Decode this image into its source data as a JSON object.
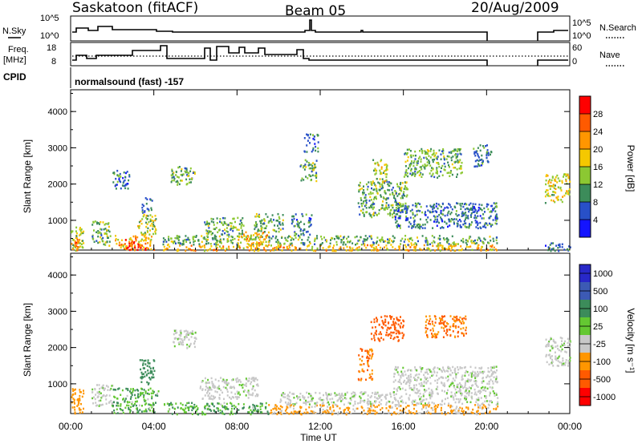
{
  "header": {
    "station": "Saskatoon (fitACF)",
    "beam": "Beam 05",
    "date": "20/Aug/2009"
  },
  "top_panels": {
    "nsky_label": "N.Sky",
    "nsky_ticks": [
      "10^5",
      "10^0"
    ],
    "nsearch_label": "N.Search",
    "nsearch_ticks": [
      "10^5",
      "10^0"
    ],
    "freq_label_1": "Freq.",
    "freq_label_2": "[MHz]",
    "freq_ticks": [
      "18",
      "8"
    ],
    "nave_label": "Nave",
    "nave_ticks": [
      "60",
      "0"
    ],
    "cpid_label": "CPID",
    "cpid_text": "normalsound (fast) -157"
  },
  "axes": {
    "y_label": "Slant Range [km]",
    "y_ticks": [
      "4000",
      "3000",
      "2000",
      "1000"
    ],
    "x_ticks": [
      "00:00",
      "04:00",
      "08:00",
      "12:00",
      "16:00",
      "20:00",
      "00:00"
    ],
    "x_label": "Time UT"
  },
  "power_scale": {
    "label": "Power [dB]",
    "ticks": [
      "28",
      "24",
      "20",
      "16",
      "12",
      "8",
      "4"
    ],
    "colors": [
      "#ff0000",
      "#ff5a00",
      "#ff9600",
      "#f5c800",
      "#8cc832",
      "#3c8c5a",
      "#2850c8",
      "#1414ff"
    ]
  },
  "velocity_scale": {
    "label": "Velocity [m s⁻¹]",
    "ticks": [
      "1000",
      "500",
      "100",
      "25",
      "-25",
      "-100",
      "-500",
      "-1000"
    ],
    "colors": [
      "#2828c8",
      "#3c5ab4",
      "#3c8c5a",
      "#64c832",
      "#c8c8c8",
      "#ff9600",
      "#ff5a00",
      "#ff0000"
    ]
  },
  "chart_data": [
    {
      "type": "heatmap",
      "title": "Saskatoon (fitACF) Beam 05 20/Aug/2009",
      "xlabel": "Time UT",
      "ylabel": "Slant Range [km]",
      "colorbar_label": "Power [dB]",
      "xlim_hours": [
        0,
        24
      ],
      "ylim_km": [
        180,
        4600
      ],
      "scale_db": [
        0,
        32
      ],
      "data_gaps_hours": [
        [
          20.5,
          22.8
        ]
      ],
      "regions": [
        {
          "t": [
            0.0,
            0.6
          ],
          "r": [
            180,
            900
          ],
          "v": 16
        },
        {
          "t": [
            0.0,
            0.4
          ],
          "r": [
            200,
            500
          ],
          "v": 24
        },
        {
          "t": [
            1.0,
            1.9
          ],
          "r": [
            300,
            1000
          ],
          "v": 12
        },
        {
          "t": [
            2.1,
            4.0
          ],
          "r": [
            200,
            600
          ],
          "v": 20
        },
        {
          "t": [
            2.6,
            3.6
          ],
          "r": [
            200,
            500
          ],
          "v": 28
        },
        {
          "t": [
            3.2,
            4.1
          ],
          "r": [
            600,
            1200
          ],
          "v": 16
        },
        {
          "t": [
            3.4,
            3.9
          ],
          "r": [
            1200,
            1700
          ],
          "v": 8
        },
        {
          "t": [
            2.0,
            2.8
          ],
          "r": [
            1900,
            2400
          ],
          "v": 8
        },
        {
          "t": [
            4.4,
            20.5
          ],
          "r": [
            180,
            350
          ],
          "v": 20
        },
        {
          "t": [
            4.4,
            20.5
          ],
          "r": [
            350,
            600
          ],
          "v": 12
        },
        {
          "t": [
            4.8,
            6.0
          ],
          "r": [
            2000,
            2500
          ],
          "v": 12
        },
        {
          "t": [
            6.4,
            8.3
          ],
          "r": [
            600,
            1100
          ],
          "v": 12
        },
        {
          "t": [
            8.0,
            9.5
          ],
          "r": [
            300,
            700
          ],
          "v": 20
        },
        {
          "t": [
            8.8,
            10.2
          ],
          "r": [
            700,
            1200
          ],
          "v": 12
        },
        {
          "t": [
            10.6,
            11.6
          ],
          "r": [
            600,
            1200
          ],
          "v": 8
        },
        {
          "t": [
            11.0,
            11.8
          ],
          "r": [
            2100,
            2700
          ],
          "v": 12
        },
        {
          "t": [
            11.2,
            11.9
          ],
          "r": [
            2900,
            3400
          ],
          "v": 8
        },
        {
          "t": [
            13.8,
            16.2
          ],
          "r": [
            1100,
            2100
          ],
          "v": 12
        },
        {
          "t": [
            14.5,
            15.2
          ],
          "r": [
            2000,
            2700
          ],
          "v": 16
        },
        {
          "t": [
            15.5,
            20.5
          ],
          "r": [
            800,
            1500
          ],
          "v": 8
        },
        {
          "t": [
            16.0,
            18.8
          ],
          "r": [
            2200,
            3000
          ],
          "v": 12
        },
        {
          "t": [
            19.3,
            20.2
          ],
          "r": [
            2500,
            3100
          ],
          "v": 8
        },
        {
          "t": [
            22.8,
            24.0
          ],
          "r": [
            1500,
            2300
          ],
          "v": 16
        },
        {
          "t": [
            22.8,
            24.0
          ],
          "r": [
            180,
            400
          ],
          "v": 8
        }
      ]
    },
    {
      "type": "heatmap",
      "xlabel": "Time UT",
      "ylabel": "Slant Range [km]",
      "colorbar_label": "Velocity [m s⁻¹]",
      "xlim_hours": [
        0,
        24
      ],
      "ylim_km": [
        180,
        4600
      ],
      "scale_ms": [
        -1000,
        1000
      ],
      "data_gaps_hours": [
        [
          20.5,
          22.8
        ]
      ],
      "regions": [
        {
          "t": [
            0.0,
            0.6
          ],
          "r": [
            180,
            900
          ],
          "v": -100
        },
        {
          "t": [
            1.0,
            2.0
          ],
          "r": [
            400,
            1000
          ],
          "v": 0
        },
        {
          "t": [
            2.0,
            4.2
          ],
          "r": [
            200,
            900
          ],
          "v": 60
        },
        {
          "t": [
            3.3,
            4.0
          ],
          "r": [
            1000,
            1700
          ],
          "v": 100
        },
        {
          "t": [
            4.4,
            9.5
          ],
          "r": [
            180,
            500
          ],
          "v": 60
        },
        {
          "t": [
            9.5,
            20.5
          ],
          "r": [
            180,
            450
          ],
          "v": -80
        },
        {
          "t": [
            10.0,
            20.5
          ],
          "r": [
            450,
            800
          ],
          "v": 0
        },
        {
          "t": [
            4.8,
            6.0
          ],
          "r": [
            2000,
            2500
          ],
          "v": 0
        },
        {
          "t": [
            6.2,
            9.0
          ],
          "r": [
            600,
            1200
          ],
          "v": 0
        },
        {
          "t": [
            13.8,
            14.5
          ],
          "r": [
            1100,
            2000
          ],
          "v": -300
        },
        {
          "t": [
            14.4,
            16.0
          ],
          "r": [
            2200,
            2900
          ],
          "v": -400
        },
        {
          "t": [
            15.5,
            20.5
          ],
          "r": [
            800,
            1500
          ],
          "v": 0
        },
        {
          "t": [
            17.0,
            19.0
          ],
          "r": [
            2300,
            2900
          ],
          "v": -300
        },
        {
          "t": [
            22.8,
            24.0
          ],
          "r": [
            1500,
            2300
          ],
          "v": 0
        }
      ]
    }
  ]
}
